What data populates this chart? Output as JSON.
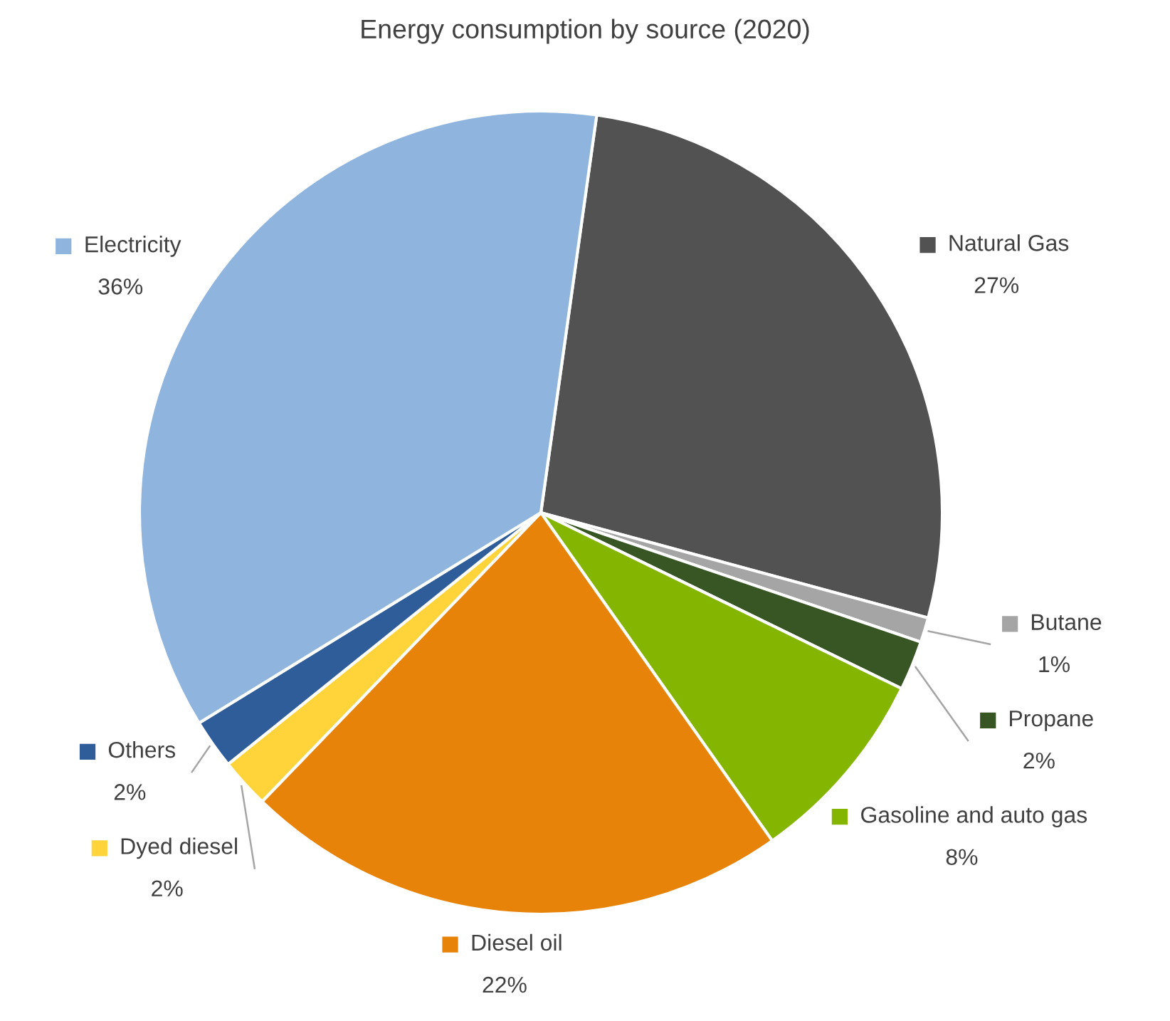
{
  "chart_data": {
    "type": "pie",
    "title": "Energy consumption by source (2020)",
    "categories": [
      "Natural Gas",
      "Butane",
      "Propane",
      "Gasoline and auto gas",
      "Diesel oil",
      "Dyed diesel",
      "Others",
      "Electricity"
    ],
    "values": [
      27,
      1,
      2,
      8,
      22,
      2,
      2,
      36
    ],
    "colors": [
      "#525252",
      "#a5a5a5",
      "#375623",
      "#84b500",
      "#e8830a",
      "#ffd43b",
      "#2e5d9a",
      "#8fb4de"
    ],
    "value_labels": [
      "27%",
      "1%",
      "2%",
      "8%",
      "22%",
      "2%",
      "2%",
      "36%"
    ],
    "legend": true
  }
}
